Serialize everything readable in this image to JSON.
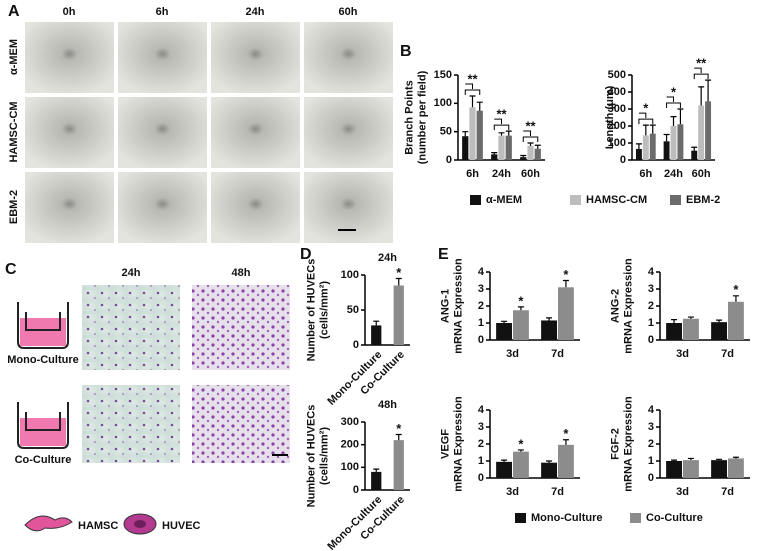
{
  "panel_labels": [
    "A",
    "B",
    "C",
    "D",
    "E"
  ],
  "panel_A": {
    "columns": [
      "0h",
      "6h",
      "24h",
      "60h"
    ],
    "rows": [
      "α-MEM",
      "HAMSC-CM",
      "EBM-2"
    ]
  },
  "panel_C": {
    "columns": [
      "24h",
      "48h"
    ],
    "rows": [
      "Mono-Culture",
      "Co-Culture"
    ],
    "legend": [
      "HAMSC",
      "HUVEC"
    ]
  },
  "chart_data": [
    {
      "type": "bar",
      "ylabel": [
        "Branch Points",
        "(number per field)"
      ],
      "categories": [
        "6h",
        "24h",
        "60h"
      ],
      "series": [
        {
          "name": "α-MEM",
          "color": "#111111",
          "values": [
            42,
            10,
            5
          ],
          "errors": [
            8,
            3,
            3
          ]
        },
        {
          "name": "HAMSC-CM",
          "color": "#bdbdbd",
          "values": [
            93,
            43,
            25
          ],
          "errors": [
            20,
            5,
            5
          ]
        },
        {
          "name": "EBM-2",
          "color": "#6b6b6b",
          "values": [
            87,
            43,
            20
          ],
          "errors": [
            15,
            8,
            6
          ]
        }
      ],
      "significance": [
        "**",
        "**",
        "**"
      ],
      "bracket": true,
      "ylim": [
        0,
        150
      ],
      "yticks": [
        0,
        50,
        100,
        150
      ]
    },
    {
      "type": "bar",
      "ylabel": [
        "Length (μm)"
      ],
      "categories": [
        "6h",
        "24h",
        "60h"
      ],
      "series": [
        {
          "color": "#111111",
          "values": [
            65,
            110,
            55
          ],
          "errors": [
            30,
            40,
            20
          ]
        },
        {
          "color": "#bdbdbd",
          "values": [
            145,
            200,
            320
          ],
          "errors": [
            60,
            55,
            110
          ]
        },
        {
          "color": "#6b6b6b",
          "values": [
            155,
            210,
            345
          ],
          "errors": [
            50,
            90,
            125
          ]
        }
      ],
      "significance": [
        "*",
        "*",
        "**"
      ],
      "bracket": true,
      "ylim": [
        0,
        500
      ],
      "yticks": [
        0,
        100,
        200,
        300,
        400,
        500
      ]
    },
    {
      "type": "bar",
      "title": "24h",
      "ylabel": [
        "Number of HUVECs",
        "(cells/mm²)"
      ],
      "categories": [
        "Mono-Culture",
        "Co-Culture"
      ],
      "values": [
        28,
        85
      ],
      "errors": [
        6,
        10
      ],
      "colors": [
        "#111111",
        "#8c8c8c"
      ],
      "significance": [
        null,
        "*"
      ],
      "ylim": [
        0,
        100
      ],
      "yticks": [
        0,
        50,
        100
      ]
    },
    {
      "type": "bar",
      "title": "48h",
      "ylabel": [
        "Number of HUVECs",
        "(cells/mm²)"
      ],
      "categories": [
        "Mono-Culture",
        "Co-Culture"
      ],
      "values": [
        80,
        220
      ],
      "errors": [
        12,
        25
      ],
      "colors": [
        "#111111",
        "#8c8c8c"
      ],
      "significance": [
        null,
        "*"
      ],
      "ylim": [
        0,
        300
      ],
      "yticks": [
        0,
        100,
        200,
        300
      ]
    },
    {
      "type": "bar",
      "ylabel": [
        "ANG-1",
        "mRNA Expression"
      ],
      "categories": [
        "3d",
        "7d"
      ],
      "series": [
        {
          "name": "Mono-Culture",
          "color": "#111111",
          "values": [
            1.0,
            1.15
          ],
          "errors": [
            0.1,
            0.15
          ]
        },
        {
          "name": "Co-Culture",
          "color": "#8c8c8c",
          "values": [
            1.75,
            3.1
          ],
          "errors": [
            0.2,
            0.4
          ]
        }
      ],
      "significance": [
        "*",
        "*"
      ],
      "ylim": [
        0,
        4
      ],
      "yticks": [
        0,
        1,
        2,
        3,
        4
      ]
    },
    {
      "type": "bar",
      "ylabel": [
        "ANG-2",
        "mRNA Expression"
      ],
      "categories": [
        "3d",
        "7d"
      ],
      "series": [
        {
          "color": "#111111",
          "values": [
            1.0,
            1.05
          ],
          "errors": [
            0.2,
            0.12
          ]
        },
        {
          "color": "#8c8c8c",
          "values": [
            1.25,
            2.25
          ],
          "errors": [
            0.1,
            0.35
          ]
        }
      ],
      "significance": [
        null,
        "*"
      ],
      "ylim": [
        0,
        4
      ],
      "yticks": [
        0,
        1,
        2,
        3,
        4
      ]
    },
    {
      "type": "bar",
      "ylabel": [
        "VEGF",
        "mRNA Expression"
      ],
      "categories": [
        "3d",
        "7d"
      ],
      "series": [
        {
          "color": "#111111",
          "values": [
            0.95,
            0.9
          ],
          "errors": [
            0.1,
            0.1
          ]
        },
        {
          "color": "#8c8c8c",
          "values": [
            1.55,
            1.95
          ],
          "errors": [
            0.1,
            0.3
          ]
        }
      ],
      "significance": [
        "*",
        "*"
      ],
      "ylim": [
        0,
        4
      ],
      "yticks": [
        0,
        1,
        2,
        3,
        4
      ]
    },
    {
      "type": "bar",
      "ylabel": [
        "FGF-2",
        "mRNA Expression"
      ],
      "categories": [
        "3d",
        "7d"
      ],
      "series": [
        {
          "color": "#111111",
          "values": [
            1.0,
            1.05
          ],
          "errors": [
            0.05,
            0.05
          ]
        },
        {
          "color": "#8c8c8c",
          "values": [
            1.05,
            1.15
          ],
          "errors": [
            0.1,
            0.07
          ]
        }
      ],
      "ylim": [
        0,
        4
      ],
      "yticks": [
        0,
        1,
        2,
        3,
        4
      ]
    }
  ]
}
